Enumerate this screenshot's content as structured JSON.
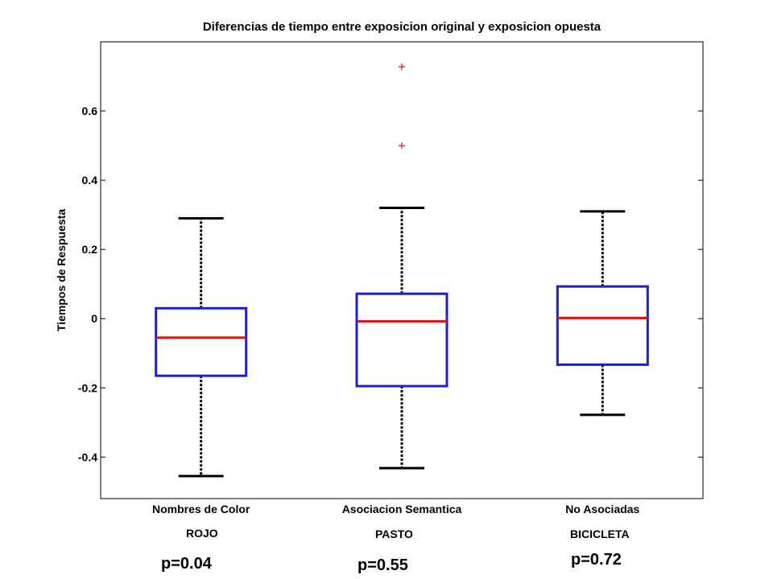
{
  "chart_data": {
    "type": "box",
    "title": "Diferencias de tiempo entre exposicion original y exposicion opuesta",
    "xlabel": "",
    "ylabel": "Tiempos de Respuesta",
    "ylim": [
      -0.52,
      0.8
    ],
    "yticks": [
      -0.4,
      -0.2,
      0,
      0.2,
      0.4,
      0.6
    ],
    "ytick_labels": [
      "-0.4",
      "-0.2",
      "0",
      "0.2",
      "0.4",
      "0.6"
    ],
    "grid": false,
    "categories": [
      "Nombres de Color",
      "Asociacion Semantica",
      "No Asociadas"
    ],
    "boxes": [
      {
        "whisker_low": -0.455,
        "q1": -0.165,
        "median": -0.055,
        "q3": 0.03,
        "whisker_high": 0.29,
        "outliers": []
      },
      {
        "whisker_low": -0.432,
        "q1": -0.195,
        "median": -0.008,
        "q3": 0.072,
        "whisker_high": 0.32,
        "outliers": [
          0.5,
          0.728
        ]
      },
      {
        "whisker_low": -0.278,
        "q1": -0.133,
        "median": 0.002,
        "q3": 0.093,
        "whisker_high": 0.31,
        "outliers": []
      }
    ],
    "colors": {
      "box": "#1f22c8",
      "median": "#e01010",
      "whisker": "#000000",
      "outlier": "#e01010"
    }
  },
  "annotations": {
    "words": [
      "ROJO",
      "PASTO",
      "BICICLETA"
    ],
    "pvalues": [
      "p=0.04",
      "p=0.55",
      "p=0.72"
    ]
  }
}
